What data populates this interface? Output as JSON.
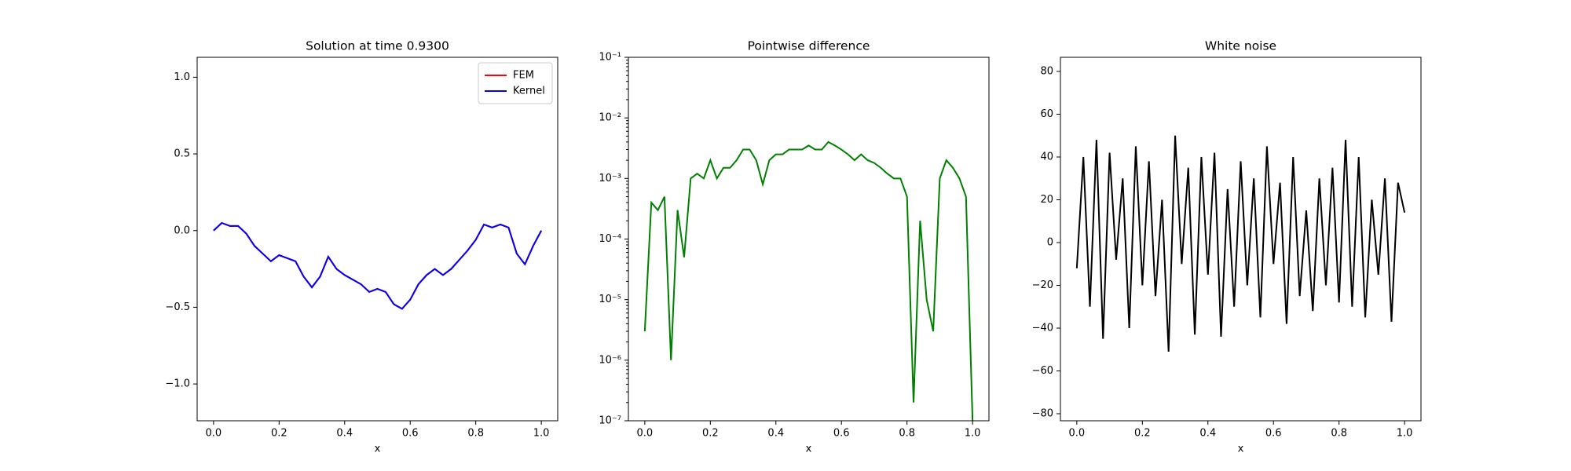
{
  "chart_data": [
    {
      "type": "line",
      "title": "Solution at time 0.9300",
      "x_label": "x",
      "legend": "upper right",
      "grid": false,
      "x": [
        0,
        0.025,
        0.05,
        0.075,
        0.1,
        0.125,
        0.15,
        0.175,
        0.2,
        0.225,
        0.25,
        0.275,
        0.3,
        0.325,
        0.35,
        0.375,
        0.4,
        0.425,
        0.45,
        0.475,
        0.5,
        0.525,
        0.55,
        0.575,
        0.6,
        0.625,
        0.65,
        0.675,
        0.7,
        0.725,
        0.75,
        0.775,
        0.8,
        0.825,
        0.85,
        0.875,
        0.9,
        0.925,
        0.95,
        0.975,
        1.0
      ],
      "series": [
        {
          "name": "FEM",
          "color": "#ff0000",
          "values": [
            0,
            0.05,
            0.03,
            0.03,
            -0.02,
            -0.1,
            -0.15,
            -0.2,
            -0.16,
            -0.18,
            -0.2,
            -0.3,
            -0.37,
            -0.3,
            -0.17,
            -0.25,
            -0.29,
            -0.32,
            -0.35,
            -0.4,
            -0.38,
            -0.4,
            -0.48,
            -0.51,
            -0.45,
            -0.35,
            -0.29,
            -0.25,
            -0.29,
            -0.25,
            -0.19,
            -0.13,
            -0.06,
            0.04,
            0.02,
            0.04,
            0.02,
            -0.15,
            -0.22,
            -0.1,
            0.0
          ]
        },
        {
          "name": "Kernel",
          "color": "#0000ff",
          "values": [
            0,
            0.05,
            0.03,
            0.03,
            -0.02,
            -0.1,
            -0.15,
            -0.2,
            -0.16,
            -0.18,
            -0.2,
            -0.3,
            -0.37,
            -0.3,
            -0.17,
            -0.25,
            -0.29,
            -0.32,
            -0.35,
            -0.4,
            -0.38,
            -0.4,
            -0.48,
            -0.51,
            -0.45,
            -0.35,
            -0.29,
            -0.25,
            -0.29,
            -0.25,
            -0.19,
            -0.13,
            -0.06,
            0.04,
            0.02,
            0.04,
            0.02,
            -0.15,
            -0.22,
            -0.1,
            0.0
          ]
        }
      ],
      "xlim": [
        -0.05,
        1.05
      ],
      "xticks": [
        {
          "value": 0,
          "label": "0.0"
        },
        0.2,
        0.4,
        0.6,
        0.8,
        {
          "value": 1,
          "label": "1.0"
        }
      ],
      "ylim": [
        -1.24,
        1.13
      ],
      "yticks": [
        {
          "value": -1,
          "label": "−1.0"
        },
        {
          "value": -0.5,
          "label": "−0.5"
        },
        {
          "value": 0,
          "label": "0.0"
        },
        0.5,
        {
          "value": 1,
          "label": "1.0"
        }
      ]
    },
    {
      "type": "line",
      "title": "Pointwise difference",
      "x_label": "x",
      "log_y": true,
      "grid": false,
      "x": [
        0,
        0.02,
        0.04,
        0.06,
        0.08,
        0.1,
        0.12,
        0.14,
        0.16,
        0.18,
        0.2,
        0.22,
        0.24,
        0.26,
        0.28,
        0.3,
        0.32,
        0.34,
        0.36,
        0.38,
        0.4,
        0.42,
        0.44,
        0.46,
        0.48,
        0.5,
        0.52,
        0.54,
        0.56,
        0.58,
        0.6,
        0.62,
        0.64,
        0.66,
        0.68,
        0.7,
        0.72,
        0.74,
        0.76,
        0.78,
        0.8,
        0.82,
        0.84,
        0.86,
        0.88,
        0.9,
        0.92,
        0.94,
        0.96,
        0.98,
        1.0
      ],
      "series": [
        {
          "color": "#008000",
          "values": [
            3e-06,
            0.0004,
            0.0003,
            0.0005,
            1e-06,
            0.0003,
            5e-05,
            0.001,
            0.0012,
            0.001,
            0.002,
            0.001,
            0.0015,
            0.0015,
            0.002,
            0.003,
            0.003,
            0.002,
            0.0008,
            0.002,
            0.0025,
            0.0025,
            0.003,
            0.003,
            0.003,
            0.0035,
            0.003,
            0.003,
            0.004,
            0.0035,
            0.003,
            0.0025,
            0.002,
            0.0025,
            0.002,
            0.0018,
            0.0015,
            0.0012,
            0.001,
            0.001,
            0.0005,
            2e-07,
            0.0002,
            1e-05,
            3e-06,
            0.001,
            0.002,
            0.0015,
            0.001,
            0.0005,
            1e-07
          ]
        }
      ],
      "xlim": [
        -0.05,
        1.05
      ],
      "xticks": [
        {
          "value": 0,
          "label": "0.0"
        },
        0.2,
        0.4,
        0.6,
        0.8,
        {
          "value": 1,
          "label": "1.0"
        }
      ],
      "ylim": [
        1e-07,
        0.1
      ],
      "yticks": [
        {
          "value": 1e-07,
          "label": "10⁻⁷"
        },
        {
          "value": 1e-06,
          "label": "10⁻⁶"
        },
        {
          "value": 1e-05,
          "label": "10⁻⁵"
        },
        {
          "value": 0.0001,
          "label": "10⁻⁴"
        },
        {
          "value": 0.001,
          "label": "10⁻³"
        },
        {
          "value": 0.01,
          "label": "10⁻²"
        },
        {
          "value": 0.1,
          "label": "10⁻¹"
        }
      ]
    },
    {
      "type": "line",
      "title": "White noise",
      "x_label": "x",
      "grid": false,
      "x": [
        0,
        0.02,
        0.04,
        0.06,
        0.08,
        0.1,
        0.12,
        0.14,
        0.16,
        0.18,
        0.2,
        0.22,
        0.24,
        0.26,
        0.28,
        0.3,
        0.32,
        0.34,
        0.36,
        0.38,
        0.4,
        0.42,
        0.44,
        0.46,
        0.48,
        0.5,
        0.52,
        0.54,
        0.56,
        0.58,
        0.6,
        0.62,
        0.64,
        0.66,
        0.68,
        0.7,
        0.72,
        0.74,
        0.76,
        0.78,
        0.8,
        0.82,
        0.84,
        0.86,
        0.88,
        0.9,
        0.92,
        0.94,
        0.96,
        0.98,
        1.0
      ],
      "series": [
        {
          "color": "#000000",
          "values": [
            -12,
            40,
            -30,
            48,
            -45,
            42,
            -8,
            30,
            -40,
            45,
            -20,
            38,
            -25,
            20,
            -51,
            50,
            -10,
            35,
            -43,
            40,
            -15,
            42,
            -44,
            25,
            -30,
            38,
            -20,
            30,
            -35,
            45,
            -10,
            28,
            -38,
            40,
            -25,
            15,
            -32,
            30,
            -20,
            35,
            -28,
            48,
            -30,
            40,
            -35,
            20,
            -15,
            30,
            -37,
            28,
            14
          ]
        }
      ],
      "xlim": [
        -0.05,
        1.05
      ],
      "xticks": [
        {
          "value": 0,
          "label": "0.0"
        },
        0.2,
        0.4,
        0.6,
        0.8,
        {
          "value": 1,
          "label": "1.0"
        }
      ],
      "ylim": [
        -83.3,
        86.6
      ],
      "yticks": [
        {
          "value": -80,
          "label": "−80"
        },
        {
          "value": -60,
          "label": "−60"
        },
        {
          "value": -40,
          "label": "−40"
        },
        {
          "value": -20,
          "label": "−20"
        },
        0,
        20,
        40,
        60,
        80
      ]
    }
  ]
}
